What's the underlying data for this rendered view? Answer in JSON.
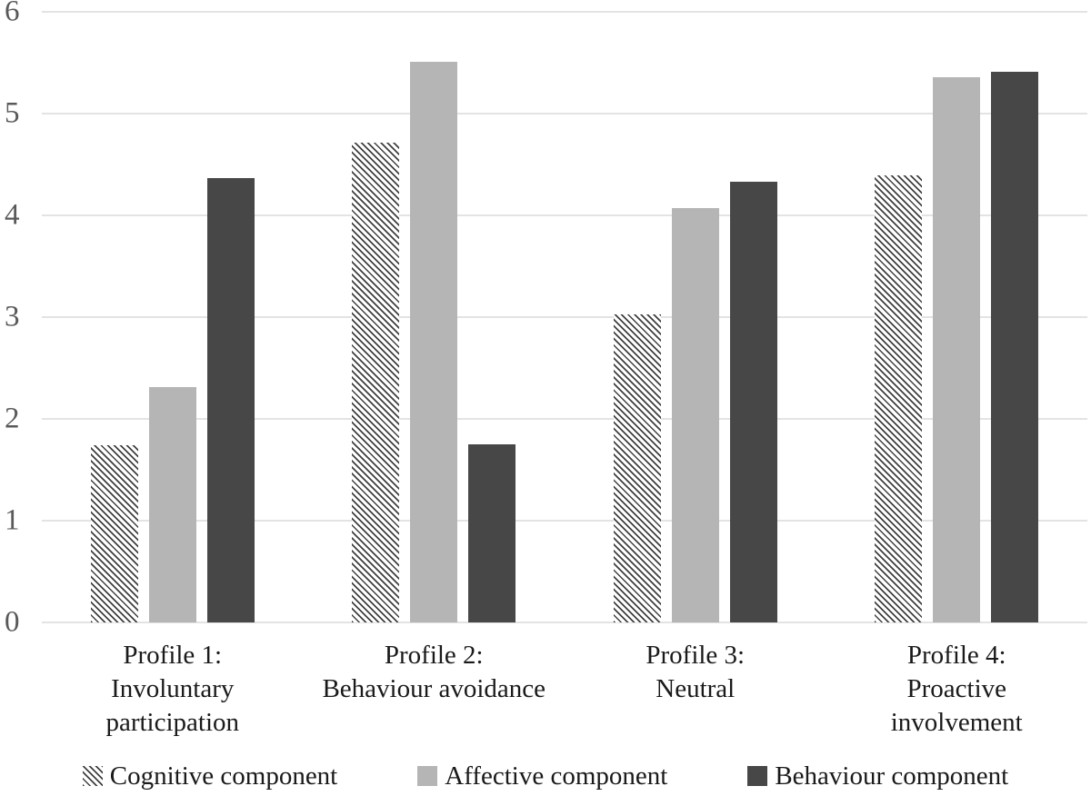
{
  "chart_data": {
    "type": "bar",
    "title": "",
    "xlabel": "",
    "ylabel": "",
    "categories": [
      "Profile 1:\nInvoluntary\nparticipation",
      "Profile 2:\nBehaviour avoidance",
      "Profile 3:\nNeutral",
      "Profile 4:\nProactive\ninvolvement"
    ],
    "series": [
      {
        "name": "Cognitive component",
        "fill": "hatch",
        "color": "#3f3f3f",
        "values": [
          1.74,
          4.71,
          3.03,
          4.39
        ]
      },
      {
        "name": "Affective component",
        "fill": "solid",
        "color": "#b5b5b5",
        "values": [
          2.31,
          5.51,
          4.07,
          5.36
        ]
      },
      {
        "name": "Behaviour component",
        "fill": "solid",
        "color": "#474747",
        "values": [
          4.37,
          1.75,
          4.33,
          5.41
        ]
      }
    ],
    "ylim": [
      0,
      6
    ],
    "yticks": [
      0,
      1,
      2,
      3,
      4,
      5,
      6
    ],
    "grid": true,
    "legend_position": "bottom"
  },
  "style": {
    "gridline_color": "#e3e3e3",
    "tick_label_color": "#595959",
    "text_color": "#1a1a1a",
    "background": "#ffffff",
    "hatch_background": "#ffffff"
  }
}
